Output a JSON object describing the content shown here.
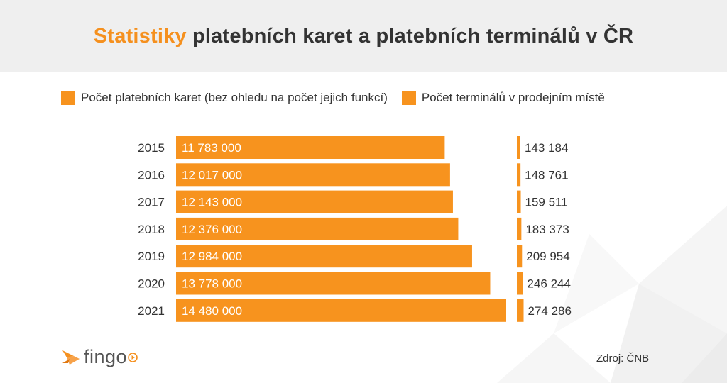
{
  "header": {
    "title_accent": "Statistiky",
    "title_rest": " platebních karet a platebních terminálů v ČR"
  },
  "legend": [
    {
      "label": "Počet platebních karet (bez ohledu na počet jejich funkcí)",
      "color": "#f7931e"
    },
    {
      "label": "Počet terminálů v prodejním místě",
      "color": "#f7931e"
    }
  ],
  "chart_data": {
    "type": "bar",
    "orientation": "horizontal",
    "categories": [
      "2015",
      "2016",
      "2017",
      "2018",
      "2019",
      "2020",
      "2021"
    ],
    "series": [
      {
        "name": "Počet platebních karet (bez ohledu na počet jejich funkcí)",
        "values": [
          11783000,
          12017000,
          12143000,
          12376000,
          12984000,
          13778000,
          14480000
        ],
        "labels": [
          "11 783 000",
          "12 017 000",
          "12 143 000",
          "12 376 000",
          "12 984 000",
          "13 778 000",
          "14 480 000"
        ],
        "color": "#f7931e"
      },
      {
        "name": "Počet terminálů v prodejním místě",
        "values": [
          143184,
          148761,
          159511,
          183373,
          209954,
          246244,
          274286
        ],
        "labels": [
          "143 184",
          "148 761",
          "159 511",
          "183 373",
          "209 954",
          "246 244",
          "274 286"
        ],
        "color": "#f7931e"
      }
    ],
    "legend_position": "top",
    "grid": false
  },
  "footer": {
    "logo_text": "fingo",
    "source": "Zdroj: ČNB"
  },
  "colors": {
    "accent": "#f5901e",
    "bar": "#f7931e",
    "header_bg": "#efefef",
    "text": "#333333"
  }
}
